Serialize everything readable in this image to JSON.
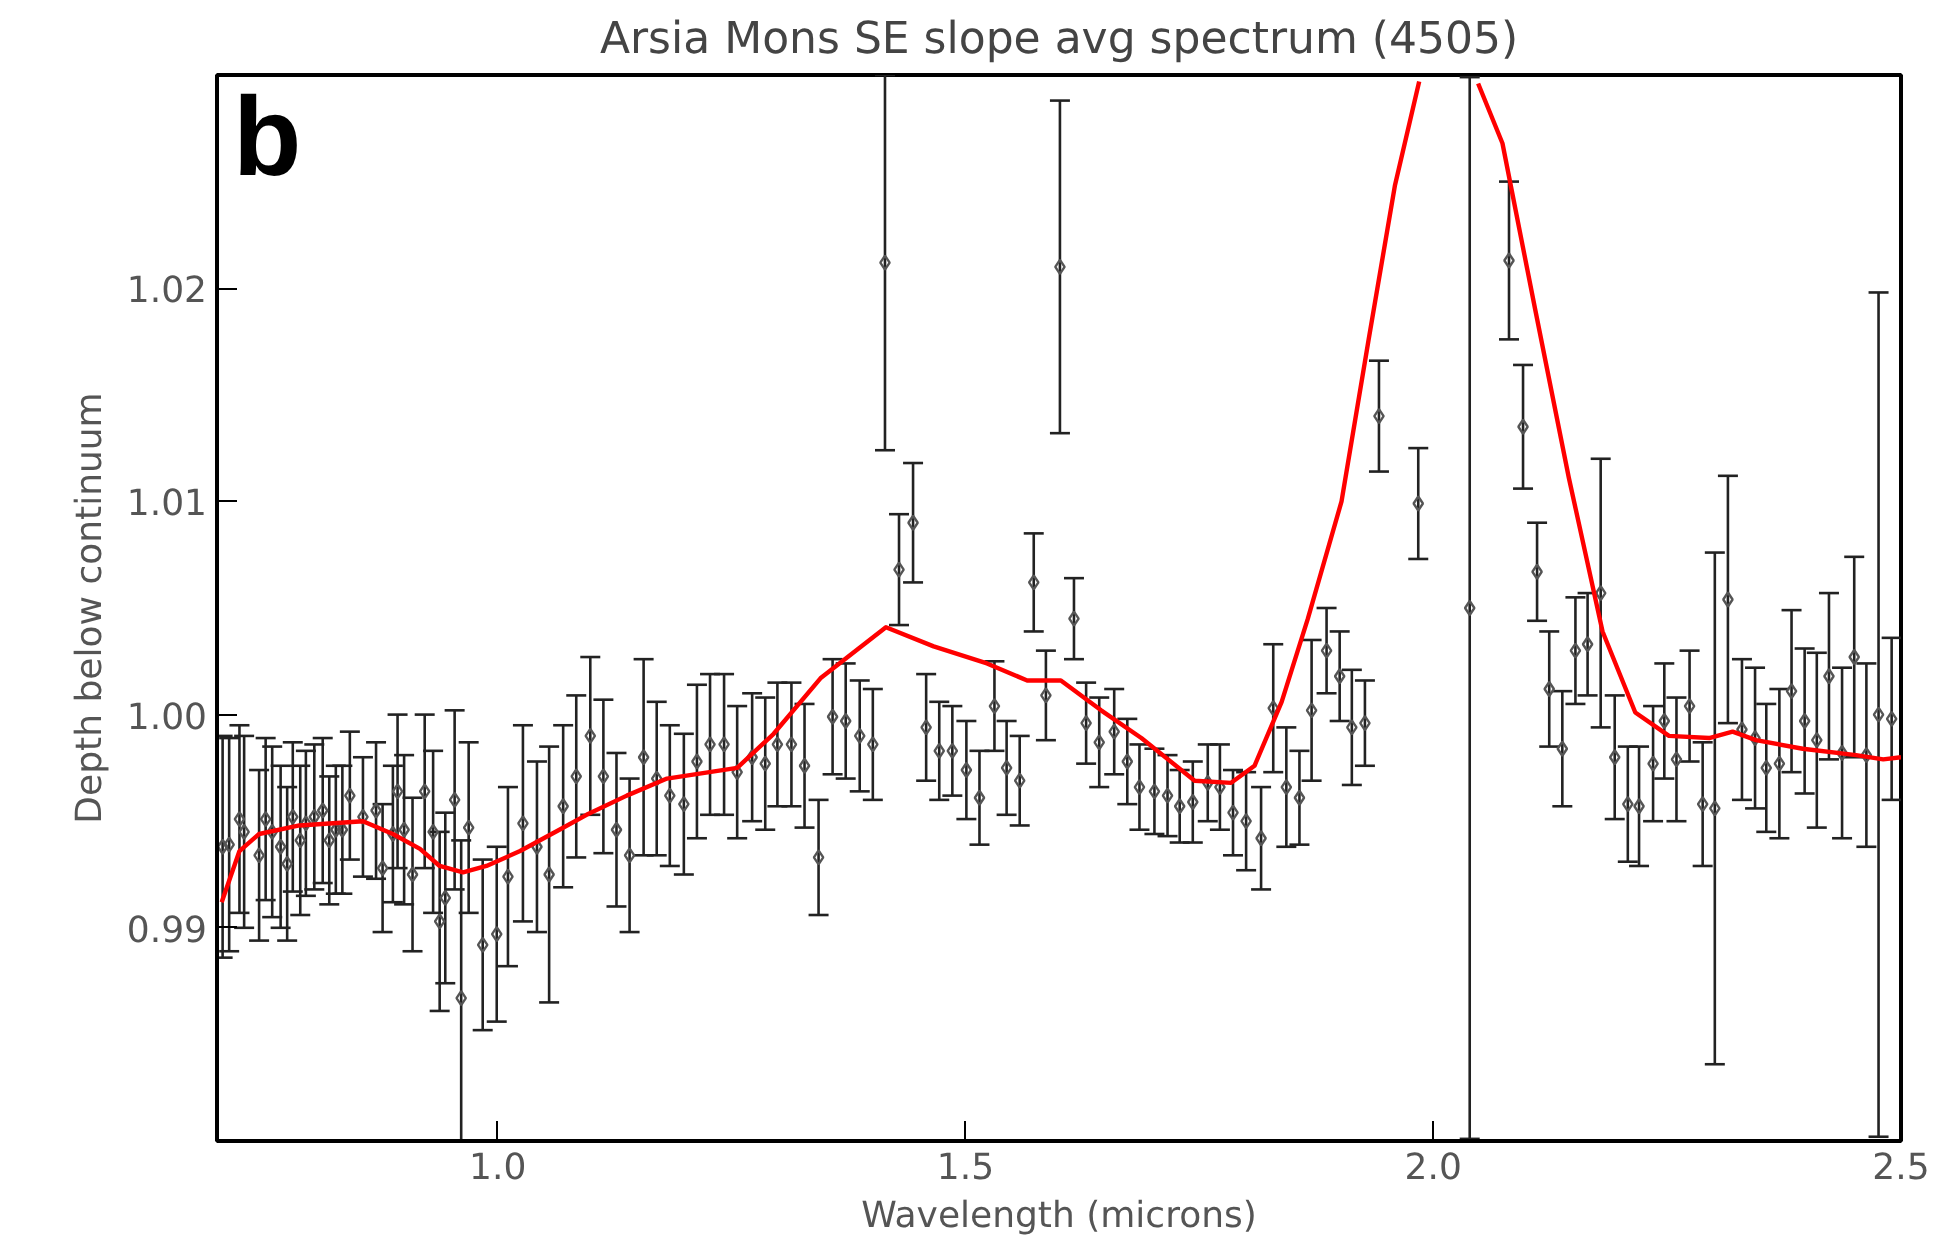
{
  "chart_data": {
    "type": "scatter",
    "title": "Arsia Mons SE slope avg spectrum (4505)",
    "xlabel": "Wavelength (microns)",
    "ylabel": "Depth below continuum",
    "annotations": [
      "b"
    ],
    "xlim": [
      0.7,
      2.5
    ],
    "ylim": [
      0.98,
      1.03
    ],
    "xticks": [
      {
        "value": 1,
        "label": "1.0"
      },
      {
        "value": 1.5,
        "label": "1.5"
      },
      {
        "value": 2,
        "label": "2.0"
      },
      {
        "value": 2.5,
        "label": "2.5"
      }
    ],
    "yticks": [
      0.99,
      {
        "value": 1,
        "label": "1.00"
      },
      1.01,
      1.02
    ],
    "grid": false,
    "series": [
      {
        "color": "#555555",
        "marker": "diamond",
        "x": [
          0.706,
          0.713,
          0.724,
          0.729,
          0.745,
          0.752,
          0.759,
          0.768,
          0.775,
          0.781,
          0.789,
          0.795,
          0.804,
          0.813,
          0.82,
          0.827,
          0.834,
          0.842,
          0.856,
          0.87,
          0.877,
          0.888,
          0.893,
          0.9,
          0.909,
          0.922,
          0.931,
          0.938,
          0.944,
          0.954,
          0.961,
          0.969,
          0.984,
          0.999,
          1.011,
          1.027,
          1.042,
          1.055,
          1.07,
          1.084,
          1.099,
          1.113,
          1.127,
          1.141,
          1.156,
          1.17,
          1.184,
          1.199,
          1.213,
          1.227,
          1.242,
          1.256,
          1.272,
          1.286,
          1.299,
          1.314,
          1.328,
          1.343,
          1.358,
          1.372,
          1.387,
          1.401,
          1.414,
          1.429,
          1.444,
          1.458,
          1.472,
          1.486,
          1.501,
          1.515,
          1.531,
          1.544,
          1.558,
          1.573,
          1.586,
          1.601,
          1.616,
          1.629,
          1.643,
          1.659,
          1.673,
          1.686,
          1.702,
          1.716,
          1.729,
          1.743,
          1.759,
          1.772,
          1.786,
          1.8,
          1.816,
          1.829,
          1.843,
          1.857,
          1.87,
          1.886,
          1.9,
          1.913,
          1.927,
          1.942,
          1.984,
          2.039,
          2.081,
          2.096,
          2.111,
          2.124,
          2.138,
          2.152,
          2.165,
          2.179,
          2.194,
          2.208,
          2.22,
          2.235,
          2.247,
          2.26,
          2.274,
          2.288,
          2.301,
          2.315,
          2.33,
          2.344,
          2.356,
          2.37,
          2.383,
          2.397,
          2.41,
          2.423,
          2.437,
          2.45,
          2.463,
          2.476,
          2.49
        ],
        "values": [
          0.9938,
          0.9939,
          0.9951,
          0.9945,
          0.9934,
          0.9951,
          0.9945,
          0.9938,
          0.993,
          0.9952,
          0.9941,
          0.9949,
          0.9952,
          0.9955,
          0.9941,
          0.9946,
          0.9946,
          0.9962,
          0.9952,
          0.9955,
          0.9928,
          0.9944,
          0.9964,
          0.9946,
          0.9925,
          0.9964,
          0.9945,
          0.9903,
          0.9914,
          0.996,
          0.9867,
          0.9947,
          0.9892,
          0.9897,
          0.9924,
          0.9949,
          0.9938,
          0.9925,
          0.9957,
          0.9971,
          0.999,
          0.9971,
          0.9946,
          0.9934,
          0.998,
          0.997,
          0.9962,
          0.9958,
          0.9978,
          0.9986,
          0.9986,
          0.9973,
          0.998,
          0.9977,
          0.9986,
          0.9986,
          0.9976,
          0.9933,
          0.9999,
          0.9997,
          0.999,
          0.9986,
          1.0212,
          1.0068,
          1.009,
          0.9994,
          0.9983,
          0.9983,
          0.9974,
          0.9961,
          1.0004,
          0.9975,
          0.9969,
          1.0062,
          1.0009,
          1.021,
          1.0045,
          0.9996,
          0.9987,
          0.9992,
          0.9978,
          0.9966,
          0.9964,
          0.9962,
          0.9957,
          0.9959,
          0.9968,
          0.9966,
          0.9954,
          0.995,
          0.9942,
          1.0003,
          0.9966,
          0.9961,
          1.0002,
          1.003,
          1.0018,
          0.9994,
          0.9996,
          1.014,
          1.0099,
          1.005,
          1.0213,
          1.0135,
          1.0067,
          1.0012,
          0.9984,
          1.003,
          1.0033,
          1.0057,
          0.998,
          0.9958,
          0.9957,
          0.9977,
          0.9997,
          0.9979,
          1.0004,
          0.9958,
          0.9956,
          1.0054,
          0.9993,
          0.9989,
          0.9975,
          0.9977,
          1.0011,
          0.9997,
          0.9988,
          1.0018,
          0.9982,
          1.0027,
          0.9981,
          1.0,
          0.9998
        ],
        "errors": [
          0.0052,
          0.005,
          0.0044,
          0.0045,
          0.004,
          0.0038,
          0.004,
          0.0038,
          0.0036,
          0.0035,
          0.0035,
          0.0034,
          0.0034,
          0.0034,
          0.003,
          0.003,
          0.003,
          0.003,
          0.0028,
          0.0032,
          0.003,
          0.0032,
          0.0036,
          0.0035,
          0.0036,
          0.0036,
          0.0038,
          0.0042,
          0.004,
          0.0042,
          0.0074,
          0.004,
          0.004,
          0.0041,
          0.0042,
          0.0046,
          0.004,
          0.006,
          0.0038,
          0.0038,
          0.0037,
          0.0036,
          0.0036,
          0.0036,
          0.0046,
          0.0036,
          0.0033,
          0.0033,
          0.0036,
          0.0033,
          0.0033,
          0.0031,
          0.003,
          0.0031,
          0.0029,
          0.0029,
          0.0029,
          0.0027,
          0.0027,
          0.0027,
          0.0026,
          0.0026,
          0.0088,
          0.0026,
          0.0028,
          0.0025,
          0.0023,
          0.0021,
          0.0023,
          0.0022,
          0.0021,
          0.0022,
          0.0021,
          0.0023,
          0.0021,
          0.0078,
          0.0019,
          0.0019,
          0.0021,
          0.002,
          0.002,
          0.002,
          0.002,
          0.0019,
          0.0017,
          0.0019,
          0.0018,
          0.002,
          0.002,
          0.0023,
          0.0024,
          0.003,
          0.0028,
          0.0022,
          0.0033,
          0.002,
          0.0021,
          0.0027,
          0.002,
          0.0026,
          0.0026,
          0.0249,
          0.0037,
          0.0029,
          0.0023,
          0.0027,
          0.0027,
          0.0025,
          0.0024,
          0.0063,
          0.0029,
          0.0027,
          0.0028,
          0.0027,
          0.0027,
          0.0029,
          0.0026,
          0.0029,
          0.012,
          0.0058,
          0.0033,
          0.0033,
          0.003,
          0.0035,
          0.0038,
          0.0034,
          0.0041,
          0.0039,
          0.004,
          0.0047,
          0.0043,
          0.0198,
          0.0038
        ]
      },
      {
        "type": "line",
        "color": "#ff0000",
        "line_style": "solid",
        "x": [
          0.705,
          0.724,
          0.745,
          0.788,
          0.856,
          0.888,
          0.917,
          0.938,
          0.963,
          0.988,
          1.024,
          1.066,
          1.095,
          1.138,
          1.181,
          1.256,
          1.295,
          1.345,
          1.415,
          1.466,
          1.523,
          1.566,
          1.602,
          1.645,
          1.688,
          1.745,
          1.784,
          1.809,
          1.838,
          1.866,
          1.902,
          1.931,
          1.959,
          1.985,
          2.01,
          2.048,
          2.074,
          2.109,
          2.145,
          2.181,
          2.216,
          2.252,
          2.295,
          2.32,
          2.345,
          2.395,
          2.452,
          2.481,
          2.5
        ],
        "values": [
          0.9912,
          0.9936,
          0.9944,
          0.9948,
          0.995,
          0.9944,
          0.9937,
          0.9929,
          0.9926,
          0.9929,
          0.9936,
          0.9946,
          0.9953,
          0.9962,
          0.997,
          0.9975,
          0.9991,
          1.0017,
          1.0041,
          1.0032,
          1.0024,
          1.0016,
          1.0016,
          1.0002,
          0.9989,
          0.9969,
          0.9968,
          0.9976,
          1.0006,
          1.0045,
          1.01,
          1.0176,
          1.0248,
          1.0297,
          null,
          1.0296,
          1.0268,
          1.019,
          1.0111,
          1.0039,
          1.0001,
          0.999,
          0.9989,
          0.9992,
          0.9988,
          0.9984,
          0.9981,
          0.9979,
          0.998
        ]
      }
    ]
  }
}
